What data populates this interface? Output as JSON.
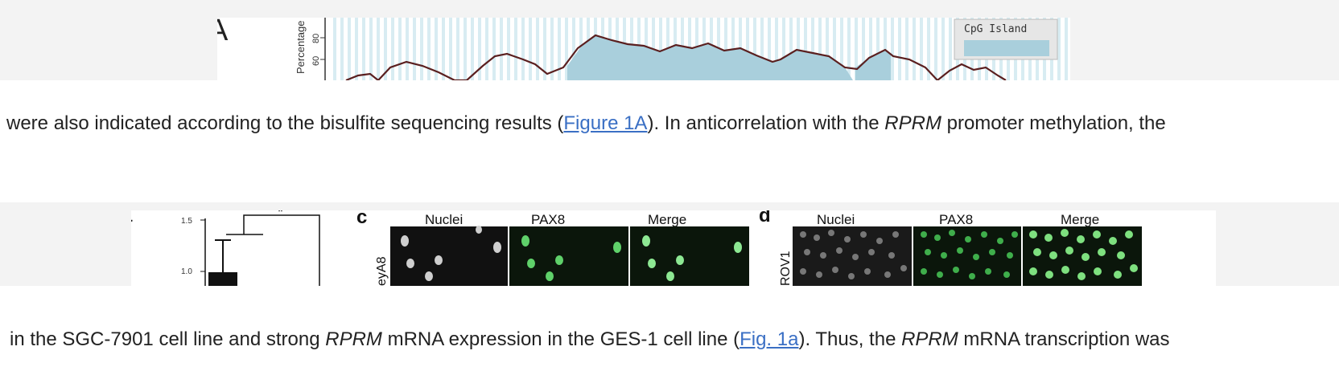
{
  "figure1": {
    "panel_label": "A",
    "ylabel": "Percentage",
    "y_ticks": [
      "80",
      "60"
    ],
    "legend_label": "CpG Island",
    "colors": {
      "island": "#a9cfdc",
      "line": "#5a1f1f",
      "stripe": "#d8ecf2"
    }
  },
  "caption1": {
    "before": "were also indicated according to the bisulfite sequencing results (",
    "link": "Figure 1A",
    "middle": "). In anticorrelation with the ",
    "gene": "RPRM",
    "after": " promoter methylation, the"
  },
  "figure2": {
    "panel_a": {
      "label": "a",
      "y_ticks": [
        "1.5",
        "1.0"
      ],
      "significance": "*"
    },
    "panel_c": {
      "label": "c",
      "columns": [
        "Nuclei",
        "PAX8",
        "Merge"
      ],
      "row_label": "eyA8"
    },
    "panel_d": {
      "label": "d",
      "columns": [
        "Nuclei",
        "PAX8",
        "Merge"
      ],
      "row_label": "ROV1"
    }
  },
  "caption2": {
    "before": "in the SGC-7901 cell line and strong ",
    "gene1": "RPRM",
    "middle1": " mRNA expression in the GES-1 cell line (",
    "link": "Fig. 1a",
    "middle2": "). Thus, the ",
    "gene2": "RPRM",
    "after": " mRNA transcription was"
  }
}
